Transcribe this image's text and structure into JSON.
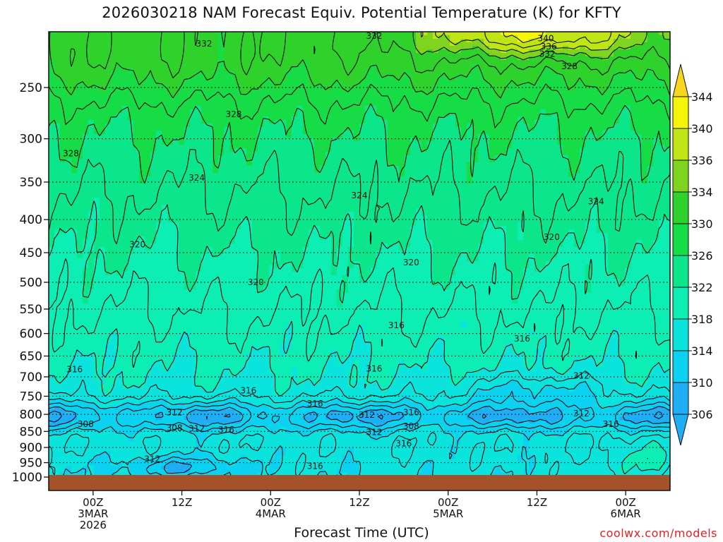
{
  "chart_data": {
    "type": "heatmap",
    "title": "2026030218 NAM Forecast Equiv. Potential Temperature (K) for KFTY",
    "xlabel": "Forecast Time (UTC)",
    "ylabel": "",
    "credit": "coolwx.com/models",
    "y_scale": "log-pressure",
    "y_ticks": [
      250,
      300,
      350,
      400,
      450,
      500,
      550,
      600,
      650,
      700,
      750,
      800,
      850,
      900,
      950,
      1000
    ],
    "ylim": [
      1000,
      200
    ],
    "x_ticks": [
      {
        "hours": 6,
        "lines": [
          "00Z",
          "3MAR",
          "2026"
        ]
      },
      {
        "hours": 18,
        "lines": [
          "12Z"
        ]
      },
      {
        "hours": 30,
        "lines": [
          "00Z",
          "4MAR"
        ]
      },
      {
        "hours": 42,
        "lines": [
          "12Z"
        ]
      },
      {
        "hours": 54,
        "lines": [
          "00Z",
          "5MAR"
        ]
      },
      {
        "hours": 66,
        "lines": [
          "12Z"
        ]
      },
      {
        "hours": 78,
        "lines": [
          "00Z",
          "6MAR"
        ]
      }
    ],
    "xlim": [
      0,
      84
    ],
    "colorbar": {
      "labels": [
        306,
        310,
        314,
        318,
        322,
        326,
        330,
        334,
        336,
        340,
        344
      ],
      "colors": [
        "#1faef5",
        "#0ad2f0",
        "#0be4dc",
        "#0ceeb4",
        "#0ce68a",
        "#16dc46",
        "#2ed22a",
        "#7fd41f",
        "#bfe514",
        "#f5f50a",
        "#f7d61e"
      ]
    },
    "contour_interval": 2,
    "contour_labels": [
      {
        "value": 332,
        "x": 21.0,
        "p": 214
      },
      {
        "value": 332,
        "x": 44.0,
        "p": 208
      },
      {
        "value": 340,
        "x": 67.2,
        "p": 210
      },
      {
        "value": 336,
        "x": 67.6,
        "p": 216
      },
      {
        "value": 332,
        "x": 67.4,
        "p": 222
      },
      {
        "value": 328,
        "x": 70.4,
        "p": 232
      },
      {
        "value": 328,
        "x": 25.0,
        "p": 275
      },
      {
        "value": 328,
        "x": 3.0,
        "p": 316
      },
      {
        "value": 324,
        "x": 20.0,
        "p": 345
      },
      {
        "value": 324,
        "x": 42.0,
        "p": 367
      },
      {
        "value": 324,
        "x": 74.0,
        "p": 375
      },
      {
        "value": 320,
        "x": 12.0,
        "p": 437
      },
      {
        "value": 320,
        "x": 68.0,
        "p": 426
      },
      {
        "value": 320,
        "x": 49.0,
        "p": 466
      },
      {
        "value": 320,
        "x": 28.0,
        "p": 500
      },
      {
        "value": 316,
        "x": 47.0,
        "p": 583
      },
      {
        "value": 316,
        "x": 64.0,
        "p": 611
      },
      {
        "value": 316,
        "x": 3.5,
        "p": 682
      },
      {
        "value": 316,
        "x": 44.0,
        "p": 680
      },
      {
        "value": 312,
        "x": 72.0,
        "p": 697
      },
      {
        "value": 316,
        "x": 27.0,
        "p": 735
      },
      {
        "value": 316,
        "x": 36.0,
        "p": 770
      },
      {
        "value": 312,
        "x": 17.0,
        "p": 795
      },
      {
        "value": 312,
        "x": 43.0,
        "p": 802
      },
      {
        "value": 316,
        "x": 49.0,
        "p": 795
      },
      {
        "value": 312,
        "x": 72.0,
        "p": 798
      },
      {
        "value": 308,
        "x": 5.0,
        "p": 828
      },
      {
        "value": 316,
        "x": 76.0,
        "p": 828
      },
      {
        "value": 308,
        "x": 17.0,
        "p": 840
      },
      {
        "value": 312,
        "x": 20.0,
        "p": 842
      },
      {
        "value": 316,
        "x": 24.0,
        "p": 845
      },
      {
        "value": 308,
        "x": 49.0,
        "p": 835
      },
      {
        "value": 312,
        "x": 44.0,
        "p": 853
      },
      {
        "value": 316,
        "x": 48.0,
        "p": 888
      },
      {
        "value": 312,
        "x": 14.0,
        "p": 938
      },
      {
        "value": 316,
        "x": 36.0,
        "p": 962
      }
    ]
  }
}
